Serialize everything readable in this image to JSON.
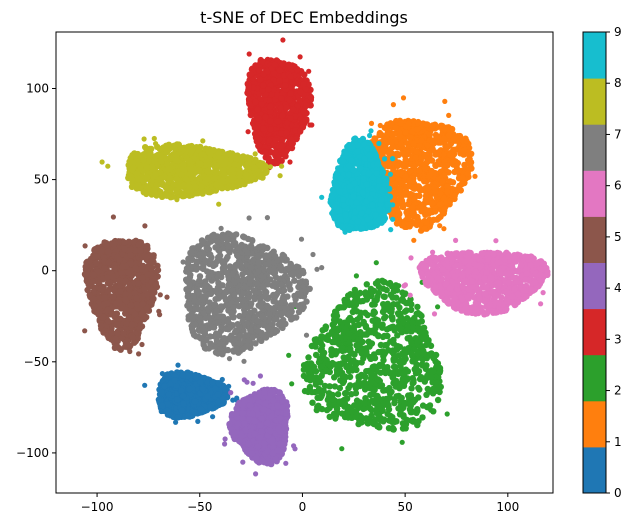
{
  "chart_data": {
    "type": "scatter",
    "title": "t-SNE of DEC Embeddings",
    "xlabel": "",
    "ylabel": "",
    "xlim": [
      -120,
      122
    ],
    "ylim": [
      -122,
      131
    ],
    "xticks": [
      -100,
      -50,
      0,
      50,
      100
    ],
    "yticks": [
      -100,
      -50,
      0,
      50,
      100
    ],
    "grid": false,
    "colorbar": {
      "ticks": [
        "0",
        "1",
        "2",
        "3",
        "4",
        "5",
        "6",
        "7",
        "8",
        "9"
      ],
      "colormap": "tab10"
    },
    "clusters": [
      {
        "label": "0",
        "color": "#1f77b4",
        "cx": -55,
        "cy": -68,
        "rx": 17,
        "ry": 12
      },
      {
        "label": "1",
        "color": "#ff7f0e",
        "cx": 57,
        "cy": 55,
        "rx": 24,
        "ry": 30
      },
      {
        "label": "2",
        "color": "#2ca02c",
        "cx": 35,
        "cy": -50,
        "rx": 33,
        "ry": 40
      },
      {
        "label": "3",
        "color": "#d62728",
        "cx": -12,
        "cy": 90,
        "rx": 15,
        "ry": 28
      },
      {
        "label": "4",
        "color": "#9467bd",
        "cx": -20,
        "cy": -85,
        "rx": 14,
        "ry": 20
      },
      {
        "label": "5",
        "color": "#8c564b",
        "cx": -88,
        "cy": -10,
        "rx": 17,
        "ry": 30
      },
      {
        "label": "6",
        "color": "#e377c2",
        "cx": 88,
        "cy": -5,
        "rx": 30,
        "ry": 17
      },
      {
        "label": "7",
        "color": "#7f7f7f",
        "cx": -30,
        "cy": -12,
        "rx": 30,
        "ry": 32
      },
      {
        "label": "8",
        "color": "#bcbd22",
        "cx": -55,
        "cy": 55,
        "rx": 34,
        "ry": 14
      },
      {
        "label": "9",
        "color": "#17becf",
        "cx": 28,
        "cy": 45,
        "rx": 14,
        "ry": 25
      }
    ]
  }
}
